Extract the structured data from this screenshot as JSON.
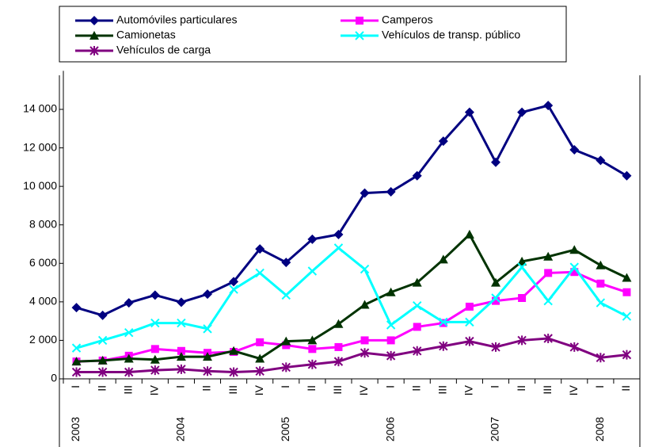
{
  "chart_data": {
    "type": "line",
    "categories": [
      "I",
      "II",
      "III",
      "IV",
      "I",
      "II",
      "III",
      "IV",
      "I",
      "II",
      "III",
      "IV",
      "I",
      "II",
      "III",
      "IV",
      "I",
      "II",
      "III",
      "IV",
      "I",
      "II"
    ],
    "years": [
      "2003",
      "2004",
      "2005",
      "2006",
      "2007",
      "2008"
    ],
    "series": [
      {
        "name": "Automóviles particulares",
        "color": "#000080",
        "marker": "diamond",
        "values": [
          3700,
          3300,
          3950,
          4350,
          3980,
          4400,
          5050,
          6750,
          6050,
          7250,
          7500,
          9650,
          9720,
          10550,
          12350,
          13850,
          11250,
          13850,
          14200,
          11900,
          11350,
          10550
        ]
      },
      {
        "name": "Camperos",
        "color": "#ff00ff",
        "marker": "square",
        "values": [
          900,
          950,
          1200,
          1550,
          1450,
          1350,
          1400,
          1900,
          1750,
          1550,
          1650,
          2000,
          2000,
          2700,
          2900,
          3750,
          4050,
          4200,
          5500,
          5550,
          4950,
          4500
        ]
      },
      {
        "name": "Camionetas",
        "color": "#003300",
        "marker": "triangle",
        "values": [
          900,
          950,
          1050,
          1000,
          1150,
          1150,
          1450,
          1050,
          1950,
          2000,
          2850,
          3850,
          4500,
          5000,
          6200,
          7500,
          5000,
          6100,
          6350,
          6700,
          5900,
          5250
        ]
      },
      {
        "name": "Vehículos de transp. público",
        "color": "#00ffff",
        "marker": "x",
        "values": [
          1600,
          2000,
          2400,
          2900,
          2900,
          2600,
          4650,
          5500,
          4350,
          5600,
          6800,
          5700,
          2800,
          3800,
          2950,
          2950,
          4200,
          5800,
          4050,
          5800,
          3950,
          3250
        ]
      },
      {
        "name": "Vehículos de carga",
        "color": "#800080",
        "marker": "star",
        "values": [
          350,
          350,
          350,
          450,
          500,
          400,
          350,
          400,
          600,
          750,
          900,
          1350,
          1200,
          1450,
          1700,
          1950,
          1650,
          2000,
          2100,
          1650,
          1100,
          1250
        ]
      }
    ],
    "ylim": [
      0,
      16000
    ],
    "yticks": [
      0,
      {
        "value": 2000,
        "label": "2 000"
      },
      {
        "value": 4000,
        "label": "4 000"
      },
      {
        "value": 6000,
        "label": "6 000"
      },
      {
        "value": 8000,
        "label": "8 000"
      },
      {
        "value": 10000,
        "label": "10 000"
      },
      {
        "value": 12000,
        "label": "12 000"
      },
      {
        "value": 14000,
        "label": "14 000"
      }
    ],
    "legend": "top"
  }
}
